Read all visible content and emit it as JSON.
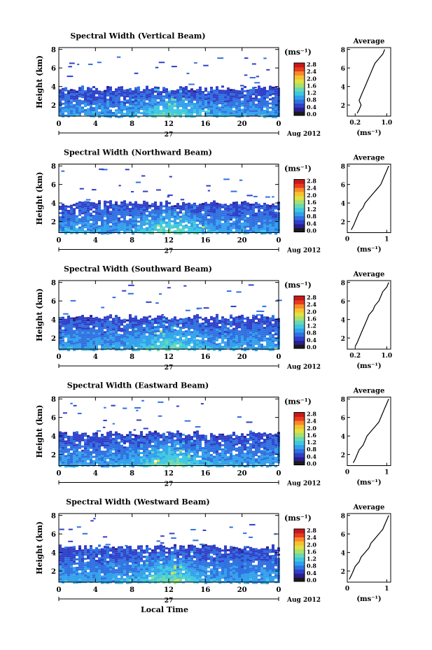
{
  "figure": {
    "xlabel": "Local Time",
    "date_day": "27",
    "date_month": "Aug 2012",
    "colorbar_unit": "(ms⁻¹)",
    "colorbar_ticks": [
      "0.0",
      "0.4",
      "0.8",
      "1.2",
      "1.6",
      "2.0",
      "2.4",
      "2.8"
    ],
    "colormap": [
      "#1a1a1a",
      "#2b1e8e",
      "#2f3fc8",
      "#2f70e0",
      "#33a0ec",
      "#3ec8e0",
      "#6ad8b0",
      "#a8e070",
      "#e0e040",
      "#f8c030",
      "#f88a28",
      "#e83a20",
      "#c81818"
    ]
  },
  "chart_data": [
    {
      "type": "heatmap",
      "title": "Spectral Width (Vertical Beam)",
      "ylabel": "Height (km)",
      "x_ticks": [
        "0",
        "4",
        "8",
        "12",
        "16",
        "20",
        "0"
      ],
      "xlim": [
        0,
        24
      ],
      "y_ticks": [
        "2",
        "4",
        "6",
        "8"
      ],
      "ylim": [
        0.8,
        8.2
      ],
      "top_level_km": 3.8,
      "zlim": [
        0,
        2.8
      ],
      "profile": {
        "title": "Average",
        "xlabel": "(ms⁻¹)",
        "x_ticks": [
          "0.2",
          "1.0"
        ],
        "x_tick_values": [
          0.2,
          1.0
        ],
        "xlim": [
          0,
          1.1
        ],
        "y_ticks": [
          "2",
          "4",
          "6",
          "8"
        ],
        "ylim": [
          0.8,
          8.2
        ],
        "points": [
          [
            0.25,
            1.1
          ],
          [
            0.3,
            1.5
          ],
          [
            0.35,
            2.0
          ],
          [
            0.3,
            2.5
          ],
          [
            0.35,
            3.0
          ],
          [
            0.4,
            3.5
          ],
          [
            0.45,
            4.0
          ],
          [
            0.5,
            4.5
          ],
          [
            0.55,
            5.0
          ],
          [
            0.6,
            5.5
          ],
          [
            0.65,
            6.0
          ],
          [
            0.7,
            6.5
          ],
          [
            0.8,
            7.0
          ],
          [
            0.9,
            7.5
          ],
          [
            0.95,
            8.0
          ]
        ]
      }
    },
    {
      "type": "heatmap",
      "title": "Spectral Width (Northward Beam)",
      "ylabel": "Height (km)",
      "x_ticks": [
        "0",
        "4",
        "8",
        "12",
        "16",
        "20",
        "0"
      ],
      "xlim": [
        0,
        24
      ],
      "y_ticks": [
        "2",
        "4",
        "6",
        "8"
      ],
      "ylim": [
        0.8,
        8.2
      ],
      "top_level_km": 4.0,
      "zlim": [
        0,
        2.8
      ],
      "profile": {
        "title": "Average",
        "xlabel": "(ms⁻¹)",
        "x_ticks": [
          "0",
          "1"
        ],
        "x_tick_values": [
          0,
          1
        ],
        "xlim": [
          0,
          1.1
        ],
        "y_ticks": [
          "2",
          "4",
          "6",
          "8"
        ],
        "ylim": [
          0.8,
          8.2
        ],
        "points": [
          [
            0.1,
            1.1
          ],
          [
            0.15,
            1.5
          ],
          [
            0.2,
            2.0
          ],
          [
            0.25,
            2.5
          ],
          [
            0.3,
            3.0
          ],
          [
            0.4,
            3.5
          ],
          [
            0.45,
            4.0
          ],
          [
            0.55,
            4.5
          ],
          [
            0.65,
            5.0
          ],
          [
            0.75,
            5.5
          ],
          [
            0.85,
            6.0
          ],
          [
            0.9,
            6.5
          ],
          [
            0.95,
            7.0
          ],
          [
            1.0,
            7.5
          ],
          [
            1.05,
            8.0
          ]
        ]
      }
    },
    {
      "type": "heatmap",
      "title": "Spectral Width (Southward Beam)",
      "ylabel": "Height (km)",
      "x_ticks": [
        "0",
        "4",
        "8",
        "12",
        "16",
        "20",
        "0"
      ],
      "xlim": [
        0,
        24
      ],
      "y_ticks": [
        "2",
        "4",
        "6",
        "8"
      ],
      "ylim": [
        0.8,
        8.2
      ],
      "top_level_km": 4.3,
      "zlim": [
        0,
        2.8
      ],
      "profile": {
        "title": "Average",
        "xlabel": "(ms⁻¹)",
        "x_ticks": [
          "0.2",
          "1.0"
        ],
        "x_tick_values": [
          0.2,
          1.0
        ],
        "xlim": [
          0,
          1.1
        ],
        "y_ticks": [
          "2",
          "4",
          "6",
          "8"
        ],
        "ylim": [
          0.8,
          8.2
        ],
        "points": [
          [
            0.2,
            1.1
          ],
          [
            0.25,
            1.5
          ],
          [
            0.3,
            2.0
          ],
          [
            0.35,
            2.5
          ],
          [
            0.4,
            3.0
          ],
          [
            0.45,
            3.5
          ],
          [
            0.5,
            4.0
          ],
          [
            0.55,
            4.5
          ],
          [
            0.65,
            5.0
          ],
          [
            0.7,
            5.5
          ],
          [
            0.8,
            6.0
          ],
          [
            0.85,
            6.5
          ],
          [
            0.9,
            7.0
          ],
          [
            1.0,
            7.5
          ],
          [
            1.05,
            8.0
          ]
        ]
      }
    },
    {
      "type": "heatmap",
      "title": "Spectral Width (Eastward Beam)",
      "ylabel": "Height (km)",
      "x_ticks": [
        "0",
        "4",
        "8",
        "12",
        "16",
        "20",
        "0"
      ],
      "xlim": [
        0,
        24
      ],
      "y_ticks": [
        "2",
        "4",
        "6",
        "8"
      ],
      "ylim": [
        0.8,
        8.2
      ],
      "top_level_km": 4.3,
      "zlim": [
        0,
        2.8
      ],
      "profile": {
        "title": "Average",
        "xlabel": "(ms⁻¹)",
        "x_ticks": [
          "0",
          "1"
        ],
        "x_tick_values": [
          0,
          1
        ],
        "xlim": [
          0,
          1.1
        ],
        "y_ticks": [
          "2",
          "4",
          "6",
          "8"
        ],
        "ylim": [
          0.8,
          8.2
        ],
        "points": [
          [
            0.15,
            1.1
          ],
          [
            0.2,
            1.5
          ],
          [
            0.25,
            2.0
          ],
          [
            0.3,
            2.5
          ],
          [
            0.4,
            3.0
          ],
          [
            0.45,
            3.5
          ],
          [
            0.5,
            4.0
          ],
          [
            0.6,
            4.5
          ],
          [
            0.7,
            5.0
          ],
          [
            0.8,
            5.5
          ],
          [
            0.85,
            6.0
          ],
          [
            0.9,
            6.5
          ],
          [
            0.95,
            7.0
          ],
          [
            1.0,
            7.5
          ],
          [
            1.05,
            8.0
          ]
        ]
      }
    },
    {
      "type": "heatmap",
      "title": "Spectral Width (Westward Beam)",
      "ylabel": "Height (km)",
      "x_ticks": [
        "0",
        "4",
        "8",
        "12",
        "16",
        "20",
        "0"
      ],
      "xlim": [
        0,
        24
      ],
      "y_ticks": [
        "2",
        "4",
        "6",
        "8"
      ],
      "ylim": [
        0.8,
        8.2
      ],
      "top_level_km": 4.6,
      "zlim": [
        0,
        2.8
      ],
      "profile": {
        "title": "Average",
        "xlabel": "(ms⁻¹)",
        "x_ticks": [
          "0",
          "1"
        ],
        "x_tick_values": [
          0,
          1
        ],
        "xlim": [
          0,
          1.1
        ],
        "y_ticks": [
          "2",
          "4",
          "6",
          "8"
        ],
        "ylim": [
          0.8,
          8.2
        ],
        "points": [
          [
            0.05,
            1.1
          ],
          [
            0.1,
            1.5
          ],
          [
            0.15,
            2.0
          ],
          [
            0.2,
            2.5
          ],
          [
            0.3,
            3.0
          ],
          [
            0.35,
            3.5
          ],
          [
            0.45,
            4.0
          ],
          [
            0.55,
            4.5
          ],
          [
            0.6,
            5.0
          ],
          [
            0.7,
            5.5
          ],
          [
            0.8,
            6.0
          ],
          [
            0.9,
            6.5
          ],
          [
            0.95,
            7.0
          ],
          [
            1.0,
            7.5
          ],
          [
            1.05,
            8.0
          ]
        ]
      }
    }
  ]
}
